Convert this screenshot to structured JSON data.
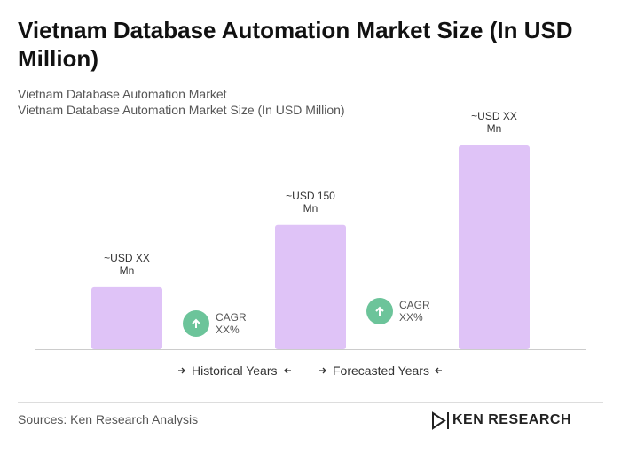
{
  "header": {
    "title": "Vietnam Database Automation Market Size (In USD Million)"
  },
  "chart_data": {
    "type": "bar",
    "title": "Vietnam Database Automation Market",
    "subtitle": "Vietnam Database Automation Market Size (In USD Million)",
    "values": [
      75,
      150,
      246
    ],
    "value_labels": [
      "~USD XX Mn",
      "~USD 150 Mn",
      "~USD XX Mn"
    ],
    "color": "#dfc3f7",
    "annotations": [
      "CAGR XX%",
      "CAGR XX%"
    ],
    "annotation_color": "#6cc49a",
    "legend": [
      "Historical Years",
      "Forecasted Years"
    ]
  },
  "footer": {
    "source": "Sources: Ken Research Analysis",
    "brand": "KEN RESEARCH"
  }
}
